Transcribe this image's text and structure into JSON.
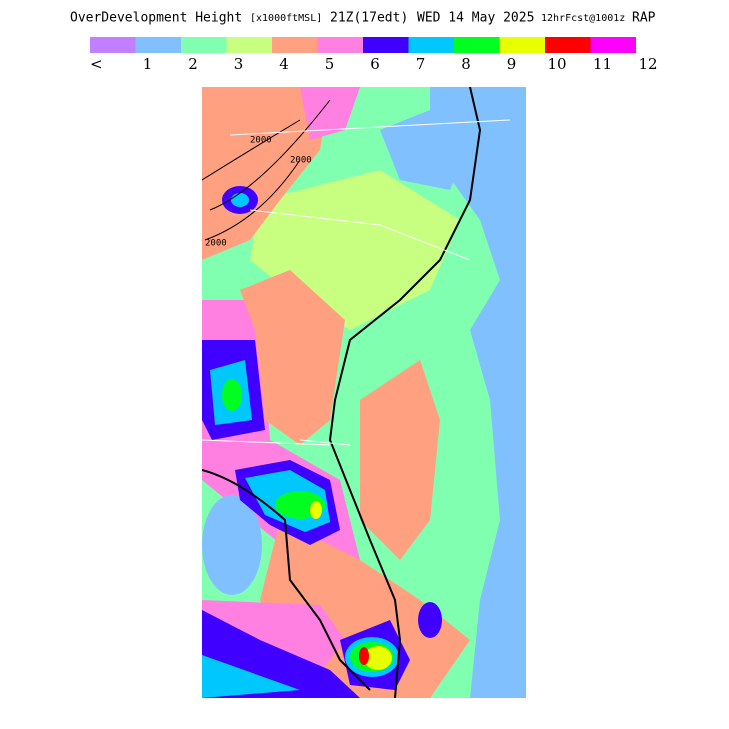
{
  "header": {
    "title": "OverDevelopment Height",
    "units": "[x1000ftMSL]",
    "valid_time": "21Z(17edt)",
    "date": "WED 14 May 2025",
    "forecast": "12hrFcst@1001z",
    "model": "RAP"
  },
  "legend": {
    "colors": [
      "#c080ff",
      "#80c0ff",
      "#80ffb0",
      "#c8ff80",
      "#ffa080",
      "#ff80e0",
      "#4000ff",
      "#00c8ff",
      "#00ff20",
      "#e8ff00",
      "#ff0000",
      "#ff00ff"
    ],
    "labels": [
      "<",
      "1",
      "2",
      "3",
      "4",
      "5",
      "6",
      "7",
      "8",
      "9",
      "10",
      "11",
      "12"
    ]
  },
  "map": {
    "contour_labels": [
      "2000",
      "2000",
      "2000"
    ]
  }
}
